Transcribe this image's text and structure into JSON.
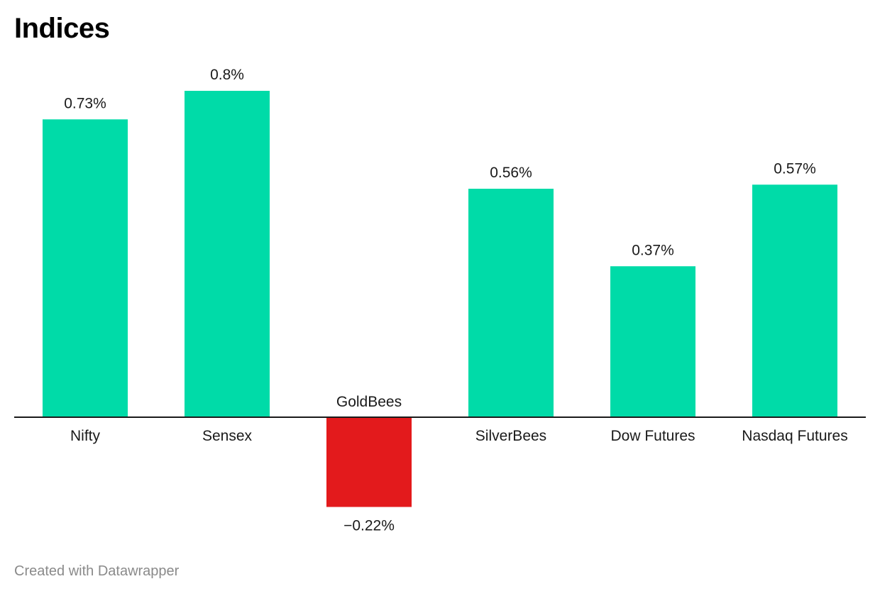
{
  "title": "Indices",
  "credit": "Created with Datawrapper",
  "colors": {
    "positive": "#00dba8",
    "negative": "#e31a1c",
    "axis": "#1a1a1a",
    "label": "#1a1a1a",
    "credit": "#8a8a8a"
  },
  "chart_data": {
    "type": "bar",
    "title": "Indices",
    "xlabel": "",
    "ylabel": "",
    "categories": [
      "Nifty",
      "Sensex",
      "GoldBees",
      "SilverBees",
      "Dow Futures",
      "Nasdaq Futures"
    ],
    "values": [
      0.73,
      0.8,
      -0.22,
      0.56,
      0.37,
      0.57
    ],
    "value_labels": [
      "0.73%",
      "0.8%",
      "−0.22%",
      "0.56%",
      "0.37%",
      "0.57%"
    ],
    "unit": "%",
    "ylim": [
      -0.22,
      0.8
    ],
    "grid": false,
    "legend": "none"
  }
}
